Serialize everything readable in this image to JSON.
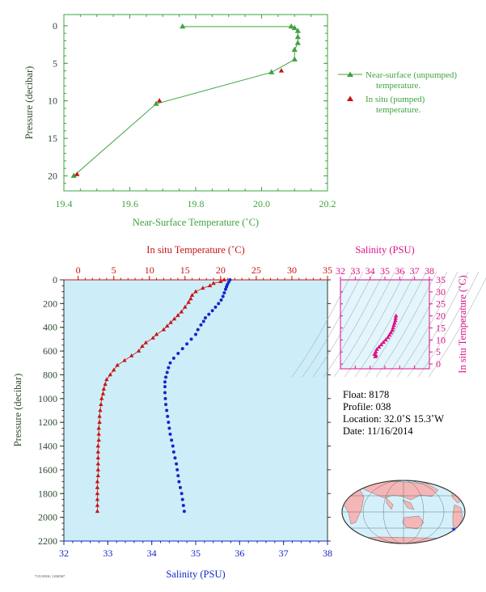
{
  "colors": {
    "green": "#3fa33f",
    "red": "#c81414",
    "blue": "#1428c8",
    "magenta": "#dd1188",
    "axis_dark": "#2e4a2e",
    "plot_bg": "#cdeef8",
    "land": "#f4b6b6",
    "ocean": "#d4f0fb"
  },
  "chart_data": [
    {
      "type": "line",
      "xlabel": "Near-Surface Temperature (˚C)",
      "ylabel": "Pressure (decibar)",
      "xlim": [
        19.4,
        20.2
      ],
      "ylim": [
        22,
        -1.5
      ],
      "y_inverted": true,
      "xticks": [
        "19.4",
        "19.6",
        "19.8",
        "20.0",
        "20.2"
      ],
      "yticks": [
        "0",
        "5",
        "10",
        "15",
        "20"
      ],
      "legend_position": "right",
      "series": [
        {
          "name": "Near-surface (unpumped) temperature.",
          "marker": "triangle",
          "color": "green",
          "points": [
            [
              19.76,
              0.1
            ],
            [
              20.09,
              0.1
            ],
            [
              20.1,
              0.3
            ],
            [
              20.11,
              0.7
            ],
            [
              20.11,
              1.5
            ],
            [
              20.11,
              2.3
            ],
            [
              20.1,
              3.2
            ],
            [
              20.1,
              4.5
            ],
            [
              20.03,
              6.2
            ],
            [
              19.68,
              10.4
            ],
            [
              19.43,
              20.0
            ]
          ]
        },
        {
          "name": "In situ (pumped) temperature.",
          "marker": "triangle",
          "color": "red",
          "points": [
            [
              20.06,
              6.0
            ],
            [
              19.69,
              10.0
            ],
            [
              19.44,
              19.8
            ]
          ]
        }
      ]
    },
    {
      "type": "scatter",
      "ylabel": "Pressure (decibar)",
      "top_xlabel": "In situ Temperature (˚C)",
      "bottom_xlabel": "Salinity (PSU)",
      "temp_lim": [
        -2,
        35
      ],
      "temp_ticks": [
        "0",
        "5",
        "10",
        "15",
        "20",
        "25",
        "30",
        "35"
      ],
      "sal_lim": [
        32,
        38
      ],
      "sal_ticks": [
        "32",
        "33",
        "34",
        "35",
        "36",
        "37",
        "38"
      ],
      "ylim": [
        2200,
        0
      ],
      "yticks": [
        "0",
        "200",
        "400",
        "600",
        "800",
        "1000",
        "1200",
        "1400",
        "1600",
        "1800",
        "2000",
        "2200"
      ],
      "temperature": [
        [
          20.5,
          0
        ],
        [
          20,
          15
        ],
        [
          19,
          30
        ],
        [
          18.5,
          50
        ],
        [
          17.5,
          70
        ],
        [
          16.5,
          100
        ],
        [
          16,
          130
        ],
        [
          15.8,
          160
        ],
        [
          15.5,
          190
        ],
        [
          15,
          230
        ],
        [
          14.5,
          270
        ],
        [
          14,
          300
        ],
        [
          13.5,
          330
        ],
        [
          13,
          360
        ],
        [
          12.5,
          390
        ],
        [
          12,
          420
        ],
        [
          11,
          460
        ],
        [
          10.5,
          490
        ],
        [
          9.5,
          530
        ],
        [
          9,
          560
        ],
        [
          8.5,
          600
        ],
        [
          7.5,
          640
        ],
        [
          6.5,
          680
        ],
        [
          5.5,
          720
        ],
        [
          5,
          760
        ],
        [
          4.5,
          800
        ],
        [
          4,
          840
        ],
        [
          3.8,
          880
        ],
        [
          3.6,
          920
        ],
        [
          3.5,
          960
        ],
        [
          3.3,
          1000
        ],
        [
          3.2,
          1050
        ],
        [
          3.1,
          1100
        ],
        [
          3.0,
          1150
        ],
        [
          3.0,
          1200
        ],
        [
          2.9,
          1250
        ],
        [
          2.9,
          1300
        ],
        [
          2.9,
          1350
        ],
        [
          2.8,
          1400
        ],
        [
          2.8,
          1450
        ],
        [
          2.8,
          1500
        ],
        [
          2.8,
          1550
        ],
        [
          2.8,
          1600
        ],
        [
          2.8,
          1650
        ],
        [
          2.7,
          1700
        ],
        [
          2.7,
          1750
        ],
        [
          2.7,
          1800
        ],
        [
          2.7,
          1850
        ],
        [
          2.7,
          1900
        ],
        [
          2.7,
          1950
        ]
      ],
      "salinity": [
        [
          35.78,
          0
        ],
        [
          35.75,
          20
        ],
        [
          35.72,
          40
        ],
        [
          35.7,
          60
        ],
        [
          35.68,
          80
        ],
        [
          35.65,
          110
        ],
        [
          35.62,
          140
        ],
        [
          35.58,
          170
        ],
        [
          35.52,
          200
        ],
        [
          35.45,
          230
        ],
        [
          35.38,
          260
        ],
        [
          35.3,
          290
        ],
        [
          35.22,
          320
        ],
        [
          35.18,
          350
        ],
        [
          35.12,
          380
        ],
        [
          35.05,
          420
        ],
        [
          35.0,
          460
        ],
        [
          34.9,
          500
        ],
        [
          34.8,
          540
        ],
        [
          34.7,
          580
        ],
        [
          34.6,
          620
        ],
        [
          34.5,
          660
        ],
        [
          34.42,
          700
        ],
        [
          34.38,
          740
        ],
        [
          34.35,
          780
        ],
        [
          34.32,
          820
        ],
        [
          34.3,
          860
        ],
        [
          34.3,
          900
        ],
        [
          34.3,
          950
        ],
        [
          34.31,
          1000
        ],
        [
          34.32,
          1050
        ],
        [
          34.34,
          1100
        ],
        [
          34.36,
          1150
        ],
        [
          34.38,
          1200
        ],
        [
          34.4,
          1250
        ],
        [
          34.42,
          1300
        ],
        [
          34.45,
          1350
        ],
        [
          34.48,
          1400
        ],
        [
          34.5,
          1450
        ],
        [
          34.53,
          1500
        ],
        [
          34.56,
          1550
        ],
        [
          34.58,
          1600
        ],
        [
          34.6,
          1650
        ],
        [
          34.62,
          1700
        ],
        [
          34.65,
          1750
        ],
        [
          34.68,
          1800
        ],
        [
          34.7,
          1850
        ],
        [
          34.72,
          1900
        ],
        [
          34.74,
          1950
        ]
      ]
    },
    {
      "type": "scatter",
      "xlabel": "Salinity (PSU)",
      "ylabel": "In situ Temperature (˚C)",
      "xlim": [
        32,
        38
      ],
      "ylim": [
        -2,
        35
      ],
      "xticks": [
        "32",
        "33",
        "34",
        "35",
        "36",
        "37",
        "38"
      ],
      "yticks": [
        "0",
        "5",
        "10",
        "15",
        "20",
        "25",
        "30",
        "35"
      ],
      "points": [
        [
          34.35,
          3
        ],
        [
          34.4,
          3.5
        ],
        [
          34.3,
          4
        ],
        [
          34.38,
          5
        ],
        [
          34.45,
          6
        ],
        [
          34.6,
          7
        ],
        [
          34.75,
          8
        ],
        [
          34.9,
          9
        ],
        [
          35.05,
          10
        ],
        [
          35.2,
          11
        ],
        [
          35.3,
          12
        ],
        [
          35.4,
          13
        ],
        [
          35.5,
          14
        ],
        [
          35.55,
          15
        ],
        [
          35.6,
          16
        ],
        [
          35.65,
          17
        ],
        [
          35.7,
          18
        ],
        [
          35.72,
          19
        ],
        [
          35.75,
          20
        ]
      ]
    }
  ],
  "float_info": {
    "float": "Float:  8178",
    "profile": "Profile:  038",
    "location": "Location:  32.0˚S  15.3˚W",
    "date": "Date:  11/16/2014"
  },
  "footer_stamp": "7/21/2016 | 1234567"
}
